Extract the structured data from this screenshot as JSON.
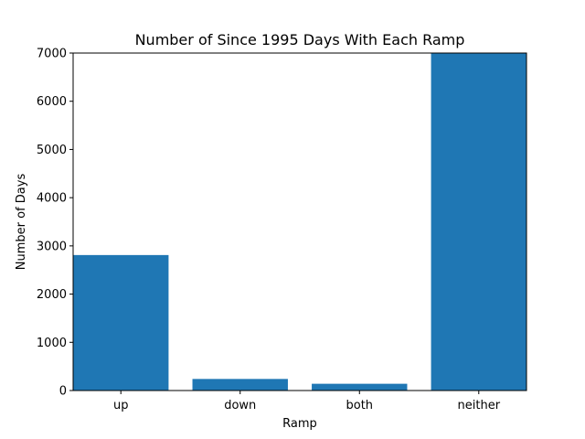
{
  "chart_data": {
    "type": "bar",
    "title": "Number of Since 1995 Days With Each Ramp",
    "xlabel": "Ramp",
    "ylabel": "Number of Days",
    "categories": [
      "up",
      "down",
      "both",
      "neither"
    ],
    "values": [
      2810,
      240,
      140,
      7000
    ],
    "ylim": [
      0,
      7000
    ],
    "yticks": [
      0,
      1000,
      2000,
      3000,
      4000,
      5000,
      6000,
      7000
    ],
    "ytick_labels": [
      "0",
      "1000",
      "2000",
      "3000",
      "4000",
      "5000",
      "6000",
      "7000"
    ],
    "grid": false,
    "legend": "none",
    "bar_color": "#1f77b4"
  }
}
